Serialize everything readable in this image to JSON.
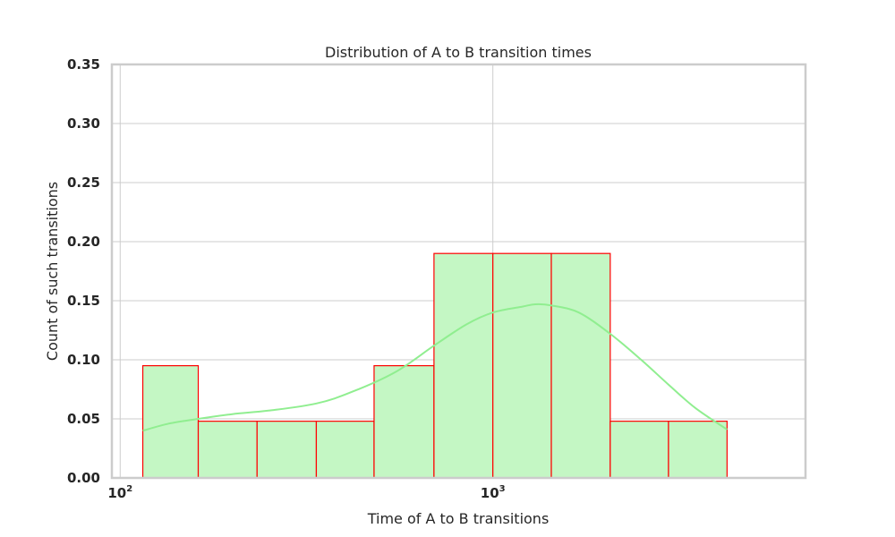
{
  "chart_data": {
    "type": "histogram",
    "title": "Distribution of A to B transition times",
    "xlabel": "Time of A to B transitions",
    "ylabel": "Count of such transitions",
    "x_scale": "log",
    "xlim": [
      95,
      6900
    ],
    "ylim": [
      0,
      0.35
    ],
    "yticks": [
      "0.00",
      "0.05",
      "0.10",
      "0.15",
      "0.20",
      "0.25",
      "0.30",
      "0.35"
    ],
    "xticks": [
      {
        "value": 100,
        "base": "10",
        "exp": "2"
      },
      {
        "value": 1000,
        "base": "10",
        "exp": "3"
      }
    ],
    "grid": true,
    "bins": [
      {
        "x0": 115,
        "x1": 162,
        "value": 0.095
      },
      {
        "x0": 162,
        "x1": 233,
        "value": 0.048
      },
      {
        "x0": 233,
        "x1": 336,
        "value": 0.048
      },
      {
        "x0": 336,
        "x1": 480,
        "value": 0.048
      },
      {
        "x0": 480,
        "x1": 695,
        "value": 0.095
      },
      {
        "x0": 695,
        "x1": 1000,
        "value": 0.19
      },
      {
        "x0": 1000,
        "x1": 1435,
        "value": 0.19
      },
      {
        "x0": 1435,
        "x1": 2065,
        "value": 0.19
      },
      {
        "x0": 2065,
        "x1": 2960,
        "value": 0.048
      },
      {
        "x0": 2960,
        "x1": 4250,
        "value": 0.048
      }
    ],
    "kde": {
      "x": [
        115,
        135,
        162,
        200,
        250,
        336,
        420,
        550,
        695,
        850,
        1000,
        1200,
        1300,
        1435,
        1700,
        2065,
        2500,
        2960,
        3500,
        4250
      ],
      "y": [
        0.04,
        0.046,
        0.05,
        0.054,
        0.057,
        0.063,
        0.073,
        0.09,
        0.112,
        0.13,
        0.14,
        0.145,
        0.147,
        0.146,
        0.14,
        0.122,
        0.1,
        0.079,
        0.059,
        0.041
      ]
    },
    "colors": {
      "bar_fill": "#c4f7c4",
      "bar_edge": "#ff0000",
      "kde": "#90ee90",
      "grid": "#cccccc"
    }
  }
}
